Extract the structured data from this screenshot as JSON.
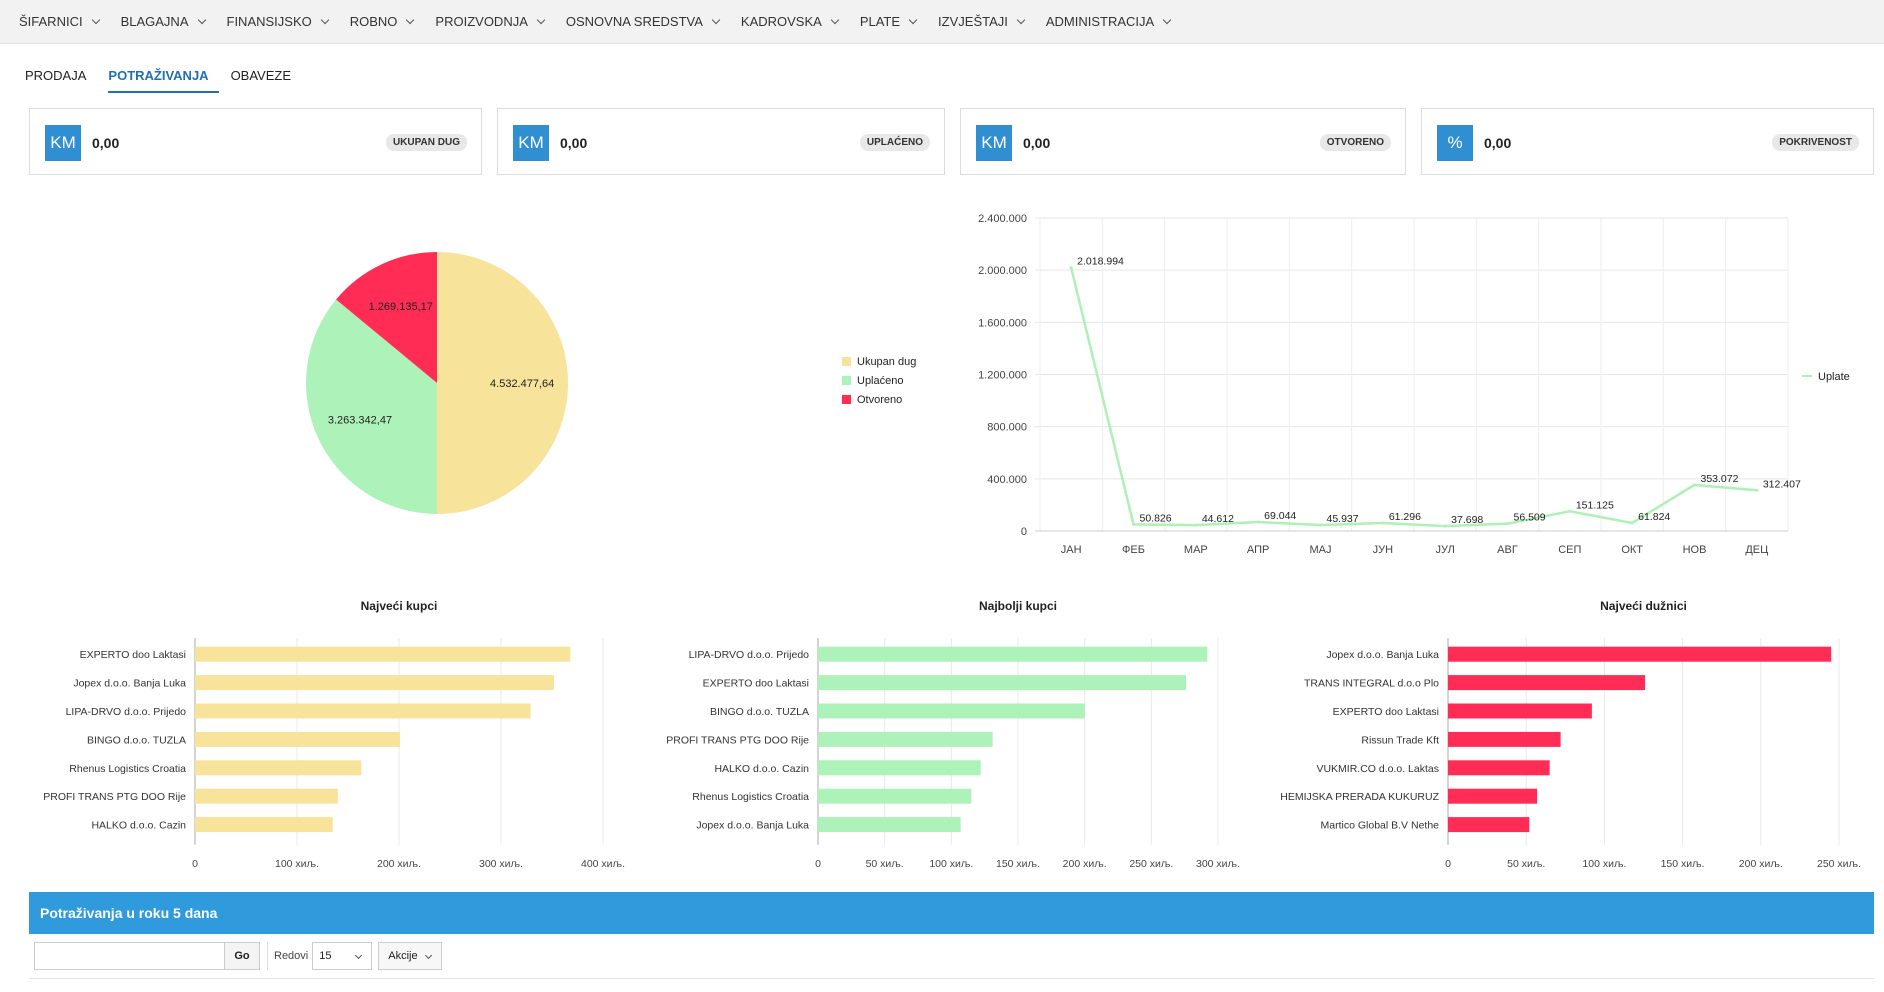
{
  "nav": [
    {
      "label": "ŠIFARNICI"
    },
    {
      "label": "BLAGAJNA"
    },
    {
      "label": "FINANSIJSKO"
    },
    {
      "label": "ROBNO"
    },
    {
      "label": "PROIZVODNJA"
    },
    {
      "label": "OSNOVNA SREDSTVA"
    },
    {
      "label": "KADROVSKA"
    },
    {
      "label": "PLATE"
    },
    {
      "label": "IZVJEŠTAJI"
    },
    {
      "label": "ADMINISTRACIJA"
    }
  ],
  "tabs": [
    {
      "label": "PRODAJA",
      "active": false
    },
    {
      "label": "POTRAŽIVANJA",
      "active": true
    },
    {
      "label": "OBAVEZE",
      "active": false
    }
  ],
  "cards": [
    {
      "icon": "KM",
      "value": "0,00",
      "badge": "UKUPAN DUG"
    },
    {
      "icon": "KM",
      "value": "0,00",
      "badge": "UPLAĆENO"
    },
    {
      "icon": "KM",
      "value": "0,00",
      "badge": "OTVORENO"
    },
    {
      "icon": "%",
      "value": "0,00",
      "badge": "POKRIVENOST"
    }
  ],
  "colors": {
    "yellow": "#f7e39a",
    "green": "#adf2b8",
    "red": "#ff2d55",
    "line": "#aef0b5",
    "accent": "#2f9bdc"
  },
  "chart_data": [
    {
      "type": "pie",
      "slices": [
        {
          "name": "Ukupan dug",
          "value": 4532477.64,
          "label": "4.532.477,64",
          "color": "#f7e39a"
        },
        {
          "name": "Uplaćeno",
          "value": 3263342.47,
          "label": "3.263.342,47",
          "color": "#adf2b8"
        },
        {
          "name": "Otvoreno",
          "value": 1269135.17,
          "label": "1.269.135,17",
          "color": "#ff2d55"
        }
      ],
      "legend_position": "right"
    },
    {
      "type": "line",
      "categories": [
        "ЈАН",
        "ФЕБ",
        "МАР",
        "АПР",
        "МАЈ",
        "ЈУН",
        "ЈУЛ",
        "АВГ",
        "СЕП",
        "ОКТ",
        "НОВ",
        "ДЕЦ"
      ],
      "series": [
        {
          "name": "Uplate",
          "values": [
            2018994,
            50826,
            44612,
            69044,
            45937,
            61296,
            37698,
            56509,
            151125,
            61824,
            353072,
            312407
          ],
          "labels": [
            "2.018.994",
            "50.826",
            "44.612",
            "69.044",
            "45.937",
            "61.296",
            "37.698",
            "56.509",
            "151.125",
            "61.824",
            "353.072",
            "312.407"
          ]
        }
      ],
      "ylim": [
        0,
        2400000
      ],
      "yticks": [
        0,
        400000,
        800000,
        1200000,
        1600000,
        2000000,
        2400000
      ],
      "ytick_labels": [
        "0",
        "400.000",
        "800.000",
        "1.200.000",
        "1.600.000",
        "2.000.000",
        "2.400.000"
      ],
      "grid": true,
      "legend_position": "right"
    },
    {
      "type": "bar",
      "orientation": "horizontal",
      "title": "Najveći kupci",
      "categories": [
        "EXPERTO doo Laktasi",
        "Jopex d.o.o. Banja Luka",
        "LIPA-DRVO d.o.o. Prijedo",
        "BINGO d.o.o. TUZLA",
        "Rhenus Logistics Croatia",
        "PROFI TRANS PTG DOO Rije",
        "HALKO d.o.o. Cazin"
      ],
      "values": [
        368000,
        352000,
        329000,
        201000,
        163000,
        140000,
        135000
      ],
      "xlim": [
        0,
        400000
      ],
      "xticks": [
        0,
        100000,
        200000,
        300000,
        400000
      ],
      "xtick_labels": [
        "0",
        "100 хиљ.",
        "200 хиљ.",
        "300 хиљ.",
        "400 хиљ."
      ],
      "color": "#f7e39a"
    },
    {
      "type": "bar",
      "orientation": "horizontal",
      "title": "Najbolji kupci",
      "categories": [
        "LIPA-DRVO d.o.o. Prijedo",
        "EXPERTO doo Laktasi",
        "BINGO d.o.o. TUZLA",
        "PROFI TRANS PTG DOO Rije",
        "HALKO d.o.o. Cazin",
        "Rhenus Logistics Croatia",
        "Jopex d.o.o. Banja Luka"
      ],
      "values": [
        292000,
        276000,
        200000,
        131000,
        122000,
        115000,
        107000
      ],
      "xlim": [
        0,
        300000
      ],
      "xticks": [
        0,
        50000,
        100000,
        150000,
        200000,
        250000,
        300000
      ],
      "xtick_labels": [
        "0",
        "50 хиљ.",
        "100 хиљ.",
        "150 хиљ.",
        "200 хиљ.",
        "250 хиљ.",
        "300 хиљ."
      ],
      "color": "#adf2b8"
    },
    {
      "type": "bar",
      "orientation": "horizontal",
      "title": "Najveći dužnici",
      "categories": [
        "Jopex d.o.o. Banja Luka",
        "TRANS INTEGRAL d.o.o Plo",
        "EXPERTO doo Laktasi",
        "Rissun Trade Kft",
        "VUKMIR.CO d.o.o. Laktas",
        "HEMIJSKA PRERADA KUKURUZ",
        "Martico Global B.V Nethe"
      ],
      "values": [
        245000,
        126000,
        92000,
        72000,
        65000,
        57000,
        52000
      ],
      "xlim": [
        0,
        250000
      ],
      "xticks": [
        0,
        50000,
        100000,
        150000,
        200000,
        250000
      ],
      "xtick_labels": [
        "0",
        "50 хиљ.",
        "100 хиљ.",
        "150 хиљ.",
        "200 хиљ.",
        "250 хиљ."
      ],
      "color": "#ff2d55"
    }
  ],
  "panel": {
    "title": "Potraživanja u roku 5 dana"
  },
  "toolbar": {
    "search_value": "",
    "go_label": "Go",
    "rows_label": "Redovi",
    "rows_value": "15",
    "actions_label": "Akcije"
  }
}
